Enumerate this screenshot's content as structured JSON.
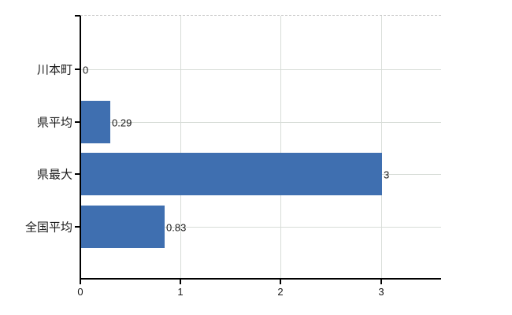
{
  "chart_data": {
    "type": "bar",
    "orientation": "horizontal",
    "title": "",
    "xlabel": "",
    "ylabel": "",
    "categories": [
      "川本町",
      "県平均",
      "県最大",
      "全国平均"
    ],
    "values": [
      0,
      0.29,
      3,
      0.83
    ],
    "value_labels": [
      "0",
      "0.29",
      "3",
      "0.83"
    ],
    "x_ticks": [
      0,
      1,
      2,
      3
    ],
    "x_tick_labels": [
      "0",
      "1",
      "2",
      "3"
    ],
    "xlim": [
      0,
      3.6
    ],
    "grid": "on",
    "legend": "none",
    "colors": {
      "bar": "#3f6fb0",
      "gridline": "#d7dcd7",
      "top_border": "#c8c8c8",
      "axis": "#000000",
      "text": "#1a1a1a"
    }
  }
}
